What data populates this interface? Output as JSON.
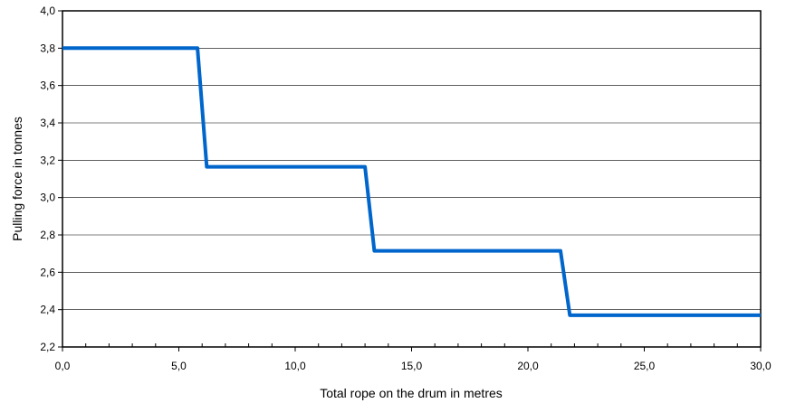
{
  "chart_data": {
    "type": "line",
    "xlabel": "Total rope on the drum in metres",
    "ylabel": "Pulling force in tonnes",
    "xlim": [
      0,
      30
    ],
    "ylim": [
      2.2,
      4.0
    ],
    "x_ticks": [
      "0,0",
      "5,0",
      "10,0",
      "15,0",
      "20,0",
      "25,0",
      "30,0"
    ],
    "y_ticks": [
      "2,2",
      "2,4",
      "2,6",
      "2,8",
      "3,0",
      "3,2",
      "3,4",
      "3,6",
      "3,8",
      "4,0"
    ],
    "grid": "horizontal",
    "series": [
      {
        "color": "#0066cc",
        "x": [
          0.0,
          5.8,
          6.2,
          13.0,
          13.4,
          21.4,
          21.8,
          30.0
        ],
        "y": [
          3.8,
          3.8,
          3.165,
          3.165,
          2.715,
          2.715,
          2.37,
          2.37
        ]
      }
    ]
  }
}
